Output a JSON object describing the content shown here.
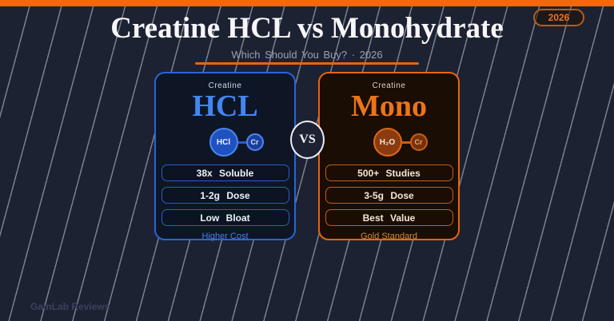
{
  "page": {
    "title": "Creatine HCL vs Monohydrate",
    "subtitle": "Which Should You Buy? · 2026",
    "year_badge": "2026",
    "vs_label": "VS",
    "brand": "GainLab Reviews"
  },
  "colors": {
    "background": "#1d2233",
    "top_bar": "#f2690d",
    "accent_blue": "#4286f2",
    "accent_orange": "#ec7518",
    "pinstripe": "#c5ccdb"
  },
  "cards": [
    {
      "kicker": "Creatine",
      "name": "HCL",
      "molecule": {
        "primary": "HCl",
        "secondary": "Cr"
      },
      "features": [
        "38x Soluble",
        "1-2g Dose",
        "Low Bloat"
      ],
      "footnote": "Higher Cost"
    },
    {
      "kicker": "Creatine",
      "name": "Mono",
      "molecule": {
        "primary": "H₂O",
        "secondary": "Cr"
      },
      "features": [
        "500+ Studies",
        "3-5g Dose",
        "Best Value"
      ],
      "footnote": "Gold Standard"
    }
  ]
}
